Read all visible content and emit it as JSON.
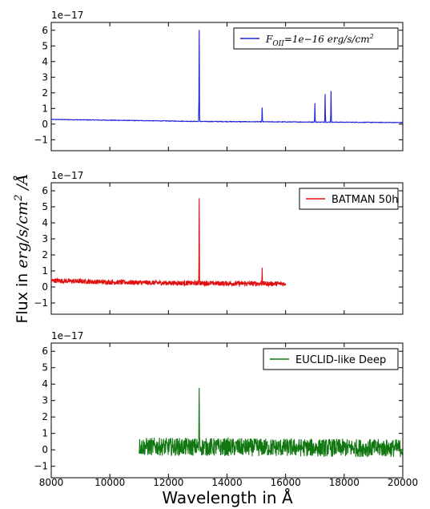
{
  "figure": {
    "xlabel": "Wavelength in Å",
    "ylabel": "Flux in erg/s/cm² /Å",
    "ylabel_parts": {
      "prefix": "Flux in ",
      "unit": "erg/s/cm",
      "exp": "2",
      "suffix": " /Å"
    },
    "x_ticks": [
      "8000",
      "10000",
      "12000",
      "14000",
      "16000",
      "18000",
      "20000"
    ]
  },
  "chart_data": [
    {
      "type": "line",
      "scale_label": "1e−17",
      "legend": "F_OII=1e−16 erg/s/cm²",
      "legend_position": "top-right",
      "line_color": "#1f1fd6",
      "xlim": [
        8000,
        20000
      ],
      "ylim": [
        -1.7,
        6.5
      ],
      "y_ticks": [
        -1,
        0,
        1,
        2,
        3,
        4,
        5,
        6
      ],
      "series": [
        {
          "name": "F_OII=1e−16 erg/s/cm²",
          "continuum": [
            [
              8000,
              0.3
            ],
            [
              10000,
              0.25
            ],
            [
              12000,
              0.2
            ],
            [
              13000,
              0.17
            ],
            [
              14000,
              0.16
            ],
            [
              16000,
              0.14
            ],
            [
              18000,
              0.12
            ],
            [
              20000,
              0.1
            ]
          ],
          "lines": [
            [
              13050,
              5.85
            ],
            [
              15200,
              0.9
            ],
            [
              17000,
              1.2
            ],
            [
              17350,
              1.8
            ],
            [
              17550,
              2.0
            ]
          ],
          "noise": 0.02
        }
      ]
    },
    {
      "type": "line",
      "scale_label": "1e−17",
      "legend": "BATMAN 50h",
      "legend_position": "top-right",
      "line_color": "#e01010",
      "xlim": [
        8000,
        20000
      ],
      "ylim": [
        -1.7,
        6.5
      ],
      "y_ticks": [
        -1,
        0,
        1,
        2,
        3,
        4,
        5,
        6
      ],
      "series": [
        {
          "name": "BATMAN 50h",
          "continuum": [
            [
              8000,
              0.4
            ],
            [
              10000,
              0.3
            ],
            [
              12000,
              0.25
            ],
            [
              14000,
              0.22
            ],
            [
              16000,
              0.2
            ]
          ],
          "lines": [
            [
              13050,
              5.3
            ],
            [
              15200,
              1.0
            ]
          ],
          "noise": 0.15
        }
      ]
    },
    {
      "type": "line",
      "scale_label": "1e−17",
      "legend": "EUCLID-like Deep",
      "legend_position": "top-right",
      "line_color": "#117711",
      "xlim": [
        8000,
        20000
      ],
      "ylim": [
        -1.7,
        6.5
      ],
      "y_ticks": [
        -1,
        0,
        1,
        2,
        3,
        4,
        5,
        6
      ],
      "series": [
        {
          "name": "EUCLID-like Deep",
          "continuum": [
            [
              11000,
              0.2
            ],
            [
              15000,
              0.15
            ],
            [
              20000,
              0.1
            ]
          ],
          "lines": [
            [
              13050,
              3.6
            ]
          ],
          "noise": 0.55
        }
      ]
    }
  ]
}
